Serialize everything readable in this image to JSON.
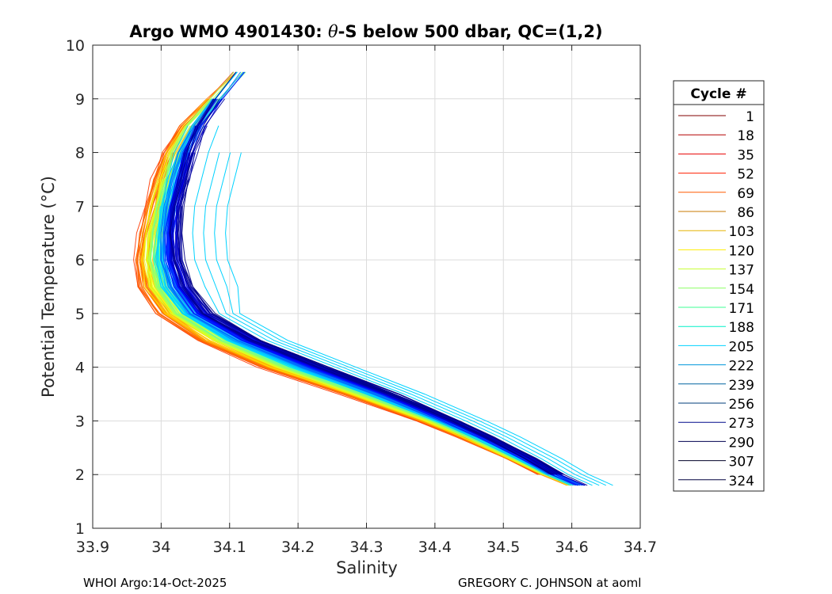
{
  "chart_data": {
    "type": "line",
    "title_main": "Argo WMO 4901430: ",
    "title_theta": "θ",
    "title_rest": "-S below 500 dbar,  QC=(1,2)",
    "xlabel": "Salinity",
    "ylabel": "Potential Temperature (°C)",
    "xlim": [
      33.9,
      34.7
    ],
    "ylim": [
      1,
      10
    ],
    "xticks": [
      33.9,
      34.0,
      34.1,
      34.2,
      34.3,
      34.4,
      34.5,
      34.6,
      34.7
    ],
    "xtick_labels": [
      "33.9",
      "34",
      "34.1",
      "34.2",
      "34.3",
      "34.4",
      "34.5",
      "34.6",
      "34.7"
    ],
    "yticks": [
      1,
      2,
      3,
      4,
      5,
      6,
      7,
      8,
      9,
      10
    ],
    "ytick_labels": [
      "1",
      "2",
      "3",
      "4",
      "5",
      "6",
      "7",
      "8",
      "9",
      "10"
    ],
    "grid": true,
    "colormap": "jet",
    "legend": {
      "title": "Cycle #",
      "placement": "right-outside",
      "entries": [
        {
          "label": "1",
          "color": "#800000"
        },
        {
          "label": "18",
          "color": "#b40000"
        },
        {
          "label": "35",
          "color": "#e80000"
        },
        {
          "label": "52",
          "color": "#ff1e00"
        },
        {
          "label": "69",
          "color": "#ff5a00"
        },
        {
          "label": "86",
          "color": "#c87800"
        },
        {
          "label": "103",
          "color": "#e6b400"
        },
        {
          "label": "120",
          "color": "#ffee00"
        },
        {
          "label": "137",
          "color": "#c8ff32"
        },
        {
          "label": "154",
          "color": "#8cff64"
        },
        {
          "label": "171",
          "color": "#3cff96"
        },
        {
          "label": "188",
          "color": "#00f0c8"
        },
        {
          "label": "205",
          "color": "#00d2ff"
        },
        {
          "label": "222",
          "color": "#0096dc"
        },
        {
          "label": "239",
          "color": "#0064a0"
        },
        {
          "label": "256",
          "color": "#003c78"
        },
        {
          "label": "273",
          "color": "#000a8c"
        },
        {
          "label": "290",
          "color": "#000050"
        },
        {
          "label": "307",
          "color": "#000028"
        },
        {
          "label": "324",
          "color": "#000040"
        }
      ]
    },
    "base_profile": {
      "theta": [
        1.8,
        2.0,
        2.3,
        2.7,
        3.0,
        3.5,
        4.0,
        4.5,
        5.0,
        5.5,
        6.0,
        6.5,
        7.0,
        7.5,
        8.0,
        8.5,
        9.0,
        9.5,
        9.9
      ],
      "salinity_early": [
        34.598,
        34.56,
        34.51,
        34.44,
        34.38,
        34.27,
        34.15,
        34.06,
        34.0,
        33.973,
        33.968,
        33.975,
        33.985,
        33.995,
        34.01,
        34.035,
        34.075,
        34.115,
        34.15
      ],
      "salinity_late": [
        34.615,
        34.58,
        34.54,
        34.48,
        34.43,
        34.34,
        34.24,
        34.14,
        34.07,
        34.04,
        34.025,
        34.022,
        34.025,
        34.035,
        34.045,
        34.06,
        34.085,
        34.115,
        34.155
      ]
    },
    "series_count": 324
  },
  "footer": {
    "left": "WHOI Argo:14-Oct-2025",
    "right": "GREGORY C. JOHNSON at aoml"
  }
}
